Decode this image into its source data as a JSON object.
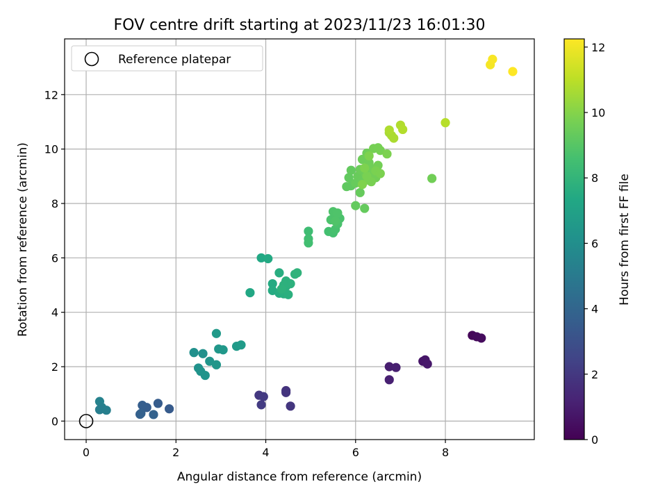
{
  "chart_data": {
    "type": "scatter",
    "title": "FOV centre drift starting at 2023/11/23 16:01:30",
    "xlabel": "Angular distance from reference (arcmin)",
    "ylabel": "Rotation from reference (arcmin)",
    "xlim": [
      -0.48,
      9.98
    ],
    "ylim": [
      -0.68,
      14.05
    ],
    "xticks": [
      0,
      2,
      4,
      6,
      8
    ],
    "xtick_labels": [
      "0",
      "2",
      "4",
      "6",
      "8"
    ],
    "yticks": [
      0,
      2,
      4,
      6,
      8,
      10,
      12
    ],
    "ytick_labels": [
      "0",
      "2",
      "4",
      "6",
      "8",
      "10",
      "12"
    ],
    "grid": true,
    "legend": {
      "placement": "top-left",
      "entries": [
        {
          "label": "Reference platepar",
          "marker": "open-circle",
          "x": 0,
          "y": 0
        }
      ]
    },
    "colorbar": {
      "label": "Hours from first FF file",
      "range": [
        0,
        12.25
      ],
      "ticks": [
        0,
        2,
        4,
        6,
        8,
        10,
        12
      ],
      "tick_labels": [
        "0",
        "2",
        "4",
        "6",
        "8",
        "10",
        "12"
      ],
      "colormap": "viridis"
    },
    "series": [
      {
        "points": [
          [
            8.6,
            3.15,
            0.2
          ],
          [
            8.7,
            3.1,
            0.3
          ],
          [
            8.8,
            3.05,
            0.35
          ],
          [
            7.5,
            2.2,
            0.7
          ],
          [
            7.55,
            2.25,
            0.75
          ],
          [
            7.6,
            2.1,
            0.8
          ],
          [
            6.75,
            2.0,
            1.0
          ],
          [
            6.9,
            1.97,
            1.05
          ],
          [
            6.75,
            1.52,
            1.1
          ],
          [
            4.45,
            1.12,
            1.8
          ],
          [
            4.45,
            1.05,
            1.85
          ],
          [
            4.55,
            0.55,
            1.9
          ],
          [
            3.85,
            0.95,
            2.0
          ],
          [
            3.95,
            0.9,
            2.05
          ],
          [
            3.9,
            0.6,
            2.1
          ],
          [
            1.85,
            0.45,
            3.5
          ],
          [
            1.6,
            0.65,
            3.55
          ],
          [
            1.35,
            0.5,
            3.6
          ],
          [
            1.25,
            0.58,
            3.65
          ],
          [
            1.2,
            0.25,
            3.7
          ],
          [
            1.22,
            0.28,
            3.75
          ],
          [
            1.5,
            0.24,
            3.8
          ],
          [
            0.3,
            0.72,
            5.4
          ],
          [
            0.35,
            0.5,
            5.3
          ],
          [
            0.3,
            0.42,
            5.2
          ],
          [
            0.45,
            0.4,
            5.25
          ],
          [
            2.4,
            2.52,
            6.1
          ],
          [
            2.6,
            2.48,
            6.15
          ],
          [
            2.5,
            1.95,
            6.2
          ],
          [
            2.55,
            1.83,
            6.25
          ],
          [
            2.65,
            1.68,
            6.3
          ],
          [
            2.75,
            2.2,
            6.35
          ],
          [
            2.9,
            2.07,
            6.4
          ],
          [
            2.95,
            2.65,
            6.45
          ],
          [
            3.05,
            2.62,
            6.5
          ],
          [
            2.9,
            3.22,
            6.55
          ],
          [
            3.35,
            2.75,
            6.6
          ],
          [
            3.45,
            2.8,
            6.65
          ],
          [
            3.65,
            4.72,
            7.3
          ],
          [
            3.9,
            6.0,
            7.35
          ],
          [
            4.05,
            5.97,
            7.4
          ],
          [
            4.15,
            5.05,
            7.45
          ],
          [
            4.15,
            4.8,
            7.5
          ],
          [
            4.3,
            4.7,
            7.55
          ],
          [
            4.3,
            5.45,
            7.6
          ],
          [
            4.4,
            4.68,
            7.65
          ],
          [
            4.45,
            4.95,
            7.7
          ],
          [
            4.5,
            4.65,
            7.72
          ],
          [
            4.45,
            5.15,
            7.75
          ],
          [
            4.55,
            5.05,
            7.78
          ],
          [
            4.4,
            5.0,
            7.8
          ],
          [
            4.35,
            4.85,
            7.82
          ],
          [
            4.65,
            5.4,
            7.85
          ],
          [
            4.7,
            5.45,
            7.88
          ],
          [
            4.95,
            6.98,
            8.4
          ],
          [
            4.95,
            6.7,
            8.45
          ],
          [
            4.95,
            6.55,
            8.5
          ],
          [
            5.4,
            6.97,
            8.55
          ],
          [
            5.5,
            6.92,
            8.6
          ],
          [
            5.55,
            7.05,
            8.65
          ],
          [
            5.6,
            7.25,
            8.7
          ],
          [
            5.65,
            7.45,
            8.72
          ],
          [
            5.45,
            7.4,
            8.75
          ],
          [
            5.55,
            7.55,
            8.78
          ],
          [
            5.5,
            7.7,
            8.8
          ],
          [
            5.6,
            7.65,
            8.82
          ],
          [
            5.55,
            7.35,
            8.85
          ],
          [
            5.8,
            8.62,
            9.2
          ],
          [
            5.9,
            8.65,
            9.22
          ],
          [
            5.85,
            8.95,
            9.25
          ],
          [
            5.9,
            9.22,
            9.28
          ],
          [
            6.0,
            7.92,
            9.3
          ],
          [
            6.2,
            7.82,
            9.32
          ],
          [
            6.1,
            8.4,
            9.35
          ],
          [
            6.0,
            8.75,
            9.38
          ],
          [
            6.05,
            9.0,
            9.4
          ],
          [
            6.15,
            8.88,
            9.42
          ],
          [
            6.1,
            9.25,
            9.45
          ],
          [
            6.2,
            9.15,
            9.48
          ],
          [
            6.15,
            9.62,
            9.5
          ],
          [
            6.25,
            9.85,
            9.52
          ],
          [
            6.3,
            9.5,
            9.55
          ],
          [
            6.35,
            9.3,
            9.58
          ],
          [
            6.4,
            9.1,
            9.6
          ],
          [
            6.45,
            8.95,
            9.62
          ],
          [
            6.5,
            9.4,
            9.65
          ],
          [
            6.4,
            10.02,
            9.68
          ],
          [
            6.5,
            10.05,
            9.7
          ],
          [
            6.55,
            9.95,
            9.72
          ],
          [
            6.3,
            8.85,
            9.74
          ],
          [
            6.35,
            8.8,
            9.76
          ],
          [
            6.25,
            9.0,
            9.78
          ],
          [
            6.45,
            9.2,
            9.8
          ],
          [
            6.55,
            9.1,
            9.82
          ],
          [
            6.7,
            9.82,
            9.84
          ],
          [
            6.2,
            9.3,
            9.86
          ],
          [
            6.3,
            9.75,
            9.88
          ],
          [
            6.15,
            8.7,
            9.9
          ],
          [
            7.7,
            8.92,
            9.6
          ],
          [
            6.75,
            10.6,
            10.6
          ],
          [
            6.8,
            10.5,
            10.65
          ],
          [
            6.85,
            10.4,
            10.7
          ],
          [
            6.75,
            10.7,
            10.75
          ],
          [
            7.0,
            10.88,
            10.8
          ],
          [
            7.05,
            10.72,
            10.85
          ],
          [
            8.0,
            10.97,
            10.9
          ],
          [
            9.0,
            13.1,
            12.1
          ],
          [
            9.05,
            13.3,
            12.15
          ],
          [
            9.5,
            12.85,
            12.25
          ]
        ]
      }
    ]
  }
}
